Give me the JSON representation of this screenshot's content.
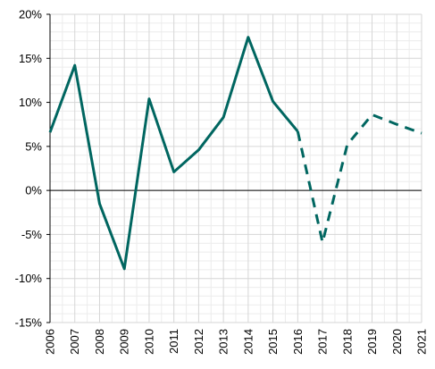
{
  "chart_data": {
    "type": "line",
    "title": "",
    "xlabel": "",
    "ylabel": "",
    "x": [
      "2006",
      "2007",
      "2008",
      "2009",
      "2010",
      "2011",
      "2012",
      "2013",
      "2014",
      "2015",
      "2016",
      "2017",
      "2018",
      "2019",
      "2020",
      "2021"
    ],
    "ylim": [
      -15,
      20
    ],
    "yticks": [
      -15,
      -10,
      -5,
      0,
      5,
      10,
      15,
      20
    ],
    "ytick_labels": [
      "-15%",
      "-10%",
      "-5%",
      "0%",
      "5%",
      "10%",
      "15%",
      "20%"
    ],
    "grid": true,
    "legend": "none",
    "color": "#006660",
    "series": [
      {
        "style": "solid",
        "x": [
          "2006",
          "2007",
          "2008",
          "2009",
          "2010",
          "2011",
          "2012",
          "2013",
          "2014",
          "2015",
          "2016"
        ],
        "values": [
          6.6,
          14.2,
          -1.5,
          -8.9,
          10.4,
          2.1,
          4.6,
          8.3,
          17.4,
          10.1,
          6.7
        ]
      },
      {
        "style": "dashed",
        "x": [
          "2016",
          "2017",
          "2018",
          "2019",
          "2020",
          "2021"
        ],
        "values": [
          6.7,
          -5.9,
          5.2,
          8.6,
          7.5,
          6.5
        ]
      }
    ]
  }
}
